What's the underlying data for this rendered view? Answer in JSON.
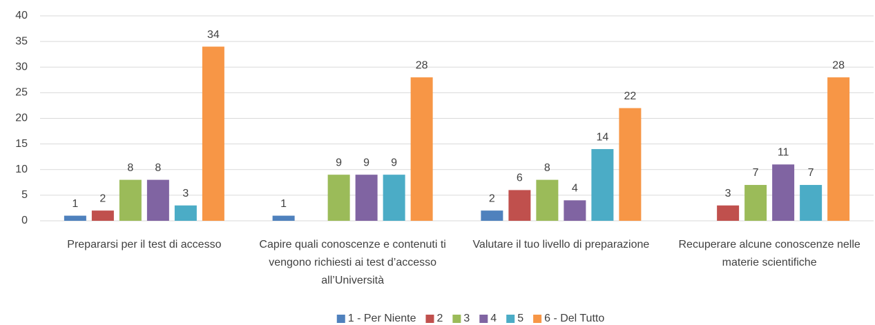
{
  "chart_data": {
    "type": "bar",
    "categories": [
      "Prepararsi per il test di accesso",
      "Capire quali conoscenze e contenuti ti vengono richiesti ai test d’accesso all’Università",
      "Valutare il tuo livello di preparazione",
      "Recuperare alcune conoscenze nelle materie scientifiche"
    ],
    "series": [
      {
        "name": "1 - Per Niente",
        "color": "#4f81bd",
        "values": [
          1,
          1,
          2,
          null
        ]
      },
      {
        "name": "2",
        "color": "#c0504d",
        "values": [
          2,
          null,
          6,
          3
        ]
      },
      {
        "name": "3",
        "color": "#9bbb59",
        "values": [
          8,
          9,
          8,
          7
        ]
      },
      {
        "name": "4",
        "color": "#8064a2",
        "values": [
          8,
          9,
          4,
          11
        ]
      },
      {
        "name": "5",
        "color": "#4bacc6",
        "values": [
          3,
          9,
          14,
          7
        ]
      },
      {
        "name": "6 - Del Tutto",
        "color": "#f79646",
        "values": [
          34,
          28,
          22,
          28
        ]
      }
    ],
    "ylim": [
      0,
      40
    ],
    "yticks": [
      0,
      5,
      10,
      15,
      20,
      25,
      30,
      35,
      40
    ],
    "grid": true,
    "legend": "bottom"
  }
}
